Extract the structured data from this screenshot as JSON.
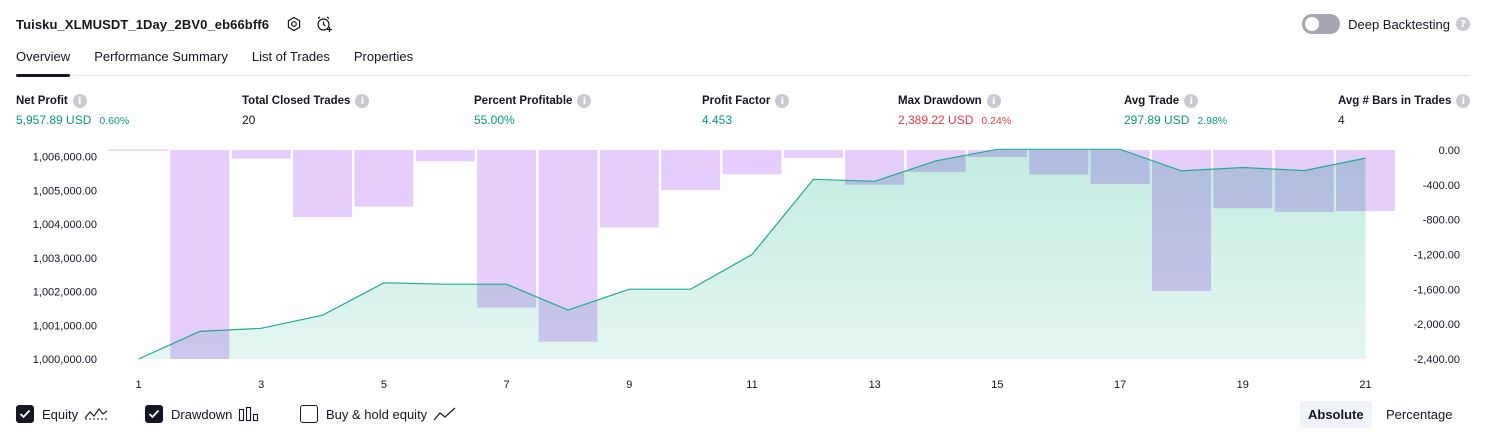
{
  "header": {
    "title": "Tuisku_XLMUSDT_1Day_2BV0_eb66bff6",
    "deep_backtesting_label": "Deep Backtesting",
    "deep_backtesting_enabled": false
  },
  "tabs": [
    {
      "label": "Overview",
      "active": true
    },
    {
      "label": "Performance Summary",
      "active": false
    },
    {
      "label": "List of Trades",
      "active": false
    },
    {
      "label": "Properties",
      "active": false
    }
  ],
  "metrics": {
    "net_profit": {
      "label": "Net Profit",
      "value": "5,957.89 USD",
      "pct": "0.60%"
    },
    "total_closed_trades": {
      "label": "Total Closed Trades",
      "value": "20"
    },
    "percent_profitable": {
      "label": "Percent Profitable",
      "value": "55.00%"
    },
    "profit_factor": {
      "label": "Profit Factor",
      "value": "4.453"
    },
    "max_drawdown": {
      "label": "Max Drawdown",
      "value": "2,389.22 USD",
      "pct": "0.24%"
    },
    "avg_trade": {
      "label": "Avg Trade",
      "value": "297.89 USD",
      "pct": "2.98%"
    },
    "avg_bars": {
      "label": "Avg # Bars in Trades",
      "value": "4"
    }
  },
  "colors": {
    "equity_line": "#22ab94",
    "equity_fill": "#c3ebe1",
    "drawdown_bar": "#e1c4fc",
    "drawdown_overlap": "#b0b6e3",
    "profit_green": "#089981",
    "loss_red": "#f23645"
  },
  "chart_data": {
    "type": "area",
    "x_ticks": [
      "1",
      "3",
      "5",
      "7",
      "9",
      "11",
      "13",
      "15",
      "17",
      "19",
      "21"
    ],
    "left_axis": {
      "ticks": [
        "1,006,000.00",
        "1,005,000.00",
        "1,004,000.00",
        "1,003,000.00",
        "1,002,000.00",
        "1,001,000.00",
        "1,000,000.00"
      ],
      "ylim": [
        1000000,
        1006200
      ]
    },
    "right_axis": {
      "ticks": [
        "0.00",
        "-400.00",
        "-800.00",
        "-1,200.00",
        "-1,600.00",
        "-2,000.00",
        "-2,400.00"
      ],
      "ylim": [
        -2400,
        0
      ]
    },
    "series": [
      {
        "name": "Equity",
        "kind": "line-area",
        "x": [
          1,
          2,
          3,
          4,
          5,
          6,
          7,
          8,
          9,
          10,
          11,
          12,
          13,
          14,
          15,
          16,
          17,
          18,
          19,
          20,
          21
        ],
        "values": [
          1000000,
          1000820,
          1000910,
          1001300,
          1002260,
          1002220,
          1002220,
          1001450,
          1002070,
          1002070,
          1003100,
          1005330,
          1005270,
          1005880,
          1006220,
          1006220,
          1006220,
          1005580,
          1005680,
          1005590,
          1005960
        ]
      },
      {
        "name": "Drawdown",
        "kind": "bar",
        "x": [
          1,
          2,
          3,
          4,
          5,
          6,
          7,
          8,
          9,
          10,
          11,
          12,
          13,
          14,
          15,
          16,
          17,
          18,
          19,
          20,
          21
        ],
        "values": [
          -10,
          -2400,
          -100,
          -770,
          -650,
          -130,
          -1810,
          -2200,
          -890,
          -460,
          -280,
          -90,
          -400,
          -250,
          -80,
          -280,
          -390,
          -1620,
          -670,
          -710,
          -700
        ]
      }
    ],
    "grid": false
  },
  "legend": {
    "equity": {
      "label": "Equity",
      "checked": true
    },
    "drawdown": {
      "label": "Drawdown",
      "checked": true
    },
    "buy_hold": {
      "label": "Buy & hold equity",
      "checked": false
    }
  },
  "modes": {
    "absolute": "Absolute",
    "percentage": "Percentage",
    "active": "absolute"
  }
}
